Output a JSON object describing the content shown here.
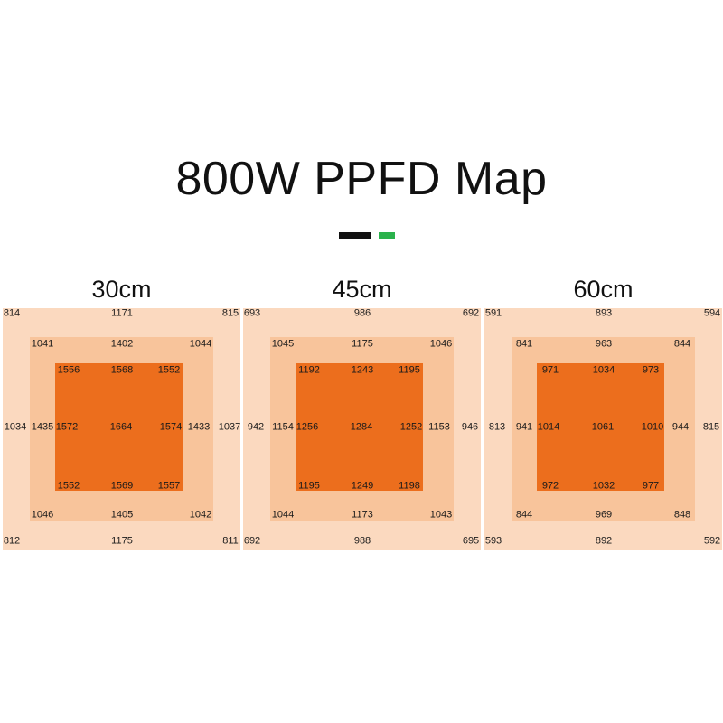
{
  "title": "800W PPFD Map",
  "colors": {
    "outer_zone": "#fbd9bf",
    "middle_zone": "#f8c49b",
    "inner_zone": "#ec6e1d",
    "accent_black": "#111111",
    "accent_green": "#2bb24c"
  },
  "chart_data": [
    {
      "type": "heatmap",
      "title": "30cm",
      "grid": [
        [
          "814",
          "",
          "1171",
          "",
          "815"
        ],
        [
          "",
          "1041",
          "1402",
          "1044",
          ""
        ],
        [
          "",
          "1556",
          "1568",
          "1552",
          ""
        ],
        [
          "1034",
          "1435",
          "1572",
          "1664",
          "1574",
          "1433",
          "1037"
        ],
        [
          "",
          "1552",
          "1569",
          "1557",
          ""
        ],
        [
          "",
          "1046",
          "1405",
          "1042",
          ""
        ],
        [
          "812",
          "",
          "1175",
          "",
          "811"
        ]
      ],
      "points": {
        "outer_top": [
          "814",
          "1171",
          "815"
        ],
        "middle_top": [
          "1041",
          "1402",
          "1044"
        ],
        "inner_top": [
          "1556",
          "1568",
          "1552"
        ],
        "center_row": [
          "1034",
          "1435",
          "1572",
          "1664",
          "1574",
          "1433",
          "1037"
        ],
        "inner_bottom": [
          "1552",
          "1569",
          "1557"
        ],
        "middle_bottom": [
          "1046",
          "1405",
          "1042"
        ],
        "outer_bottom": [
          "812",
          "1175",
          "811"
        ]
      }
    },
    {
      "type": "heatmap",
      "title": "45cm",
      "points": {
        "outer_top": [
          "693",
          "986",
          "692"
        ],
        "middle_top": [
          "1045",
          "1175",
          "1046"
        ],
        "inner_top": [
          "1192",
          "1243",
          "1195"
        ],
        "center_row": [
          "942",
          "1154",
          "1256",
          "1284",
          "1252",
          "1153",
          "946"
        ],
        "inner_bottom": [
          "1195",
          "1249",
          "1198"
        ],
        "middle_bottom": [
          "1044",
          "1173",
          "1043"
        ],
        "outer_bottom": [
          "692",
          "988",
          "695"
        ]
      }
    },
    {
      "type": "heatmap",
      "title": "60cm",
      "points": {
        "outer_top": [
          "591",
          "893",
          "594"
        ],
        "middle_top": [
          "841",
          "963",
          "844"
        ],
        "inner_top": [
          "971",
          "1034",
          "973"
        ],
        "center_row": [
          "813",
          "941",
          "1014",
          "1061",
          "1010",
          "944",
          "815"
        ],
        "inner_bottom": [
          "972",
          "1032",
          "977"
        ],
        "middle_bottom": [
          "844",
          "969",
          "848"
        ],
        "outer_bottom": [
          "593",
          "892",
          "592"
        ]
      }
    }
  ]
}
